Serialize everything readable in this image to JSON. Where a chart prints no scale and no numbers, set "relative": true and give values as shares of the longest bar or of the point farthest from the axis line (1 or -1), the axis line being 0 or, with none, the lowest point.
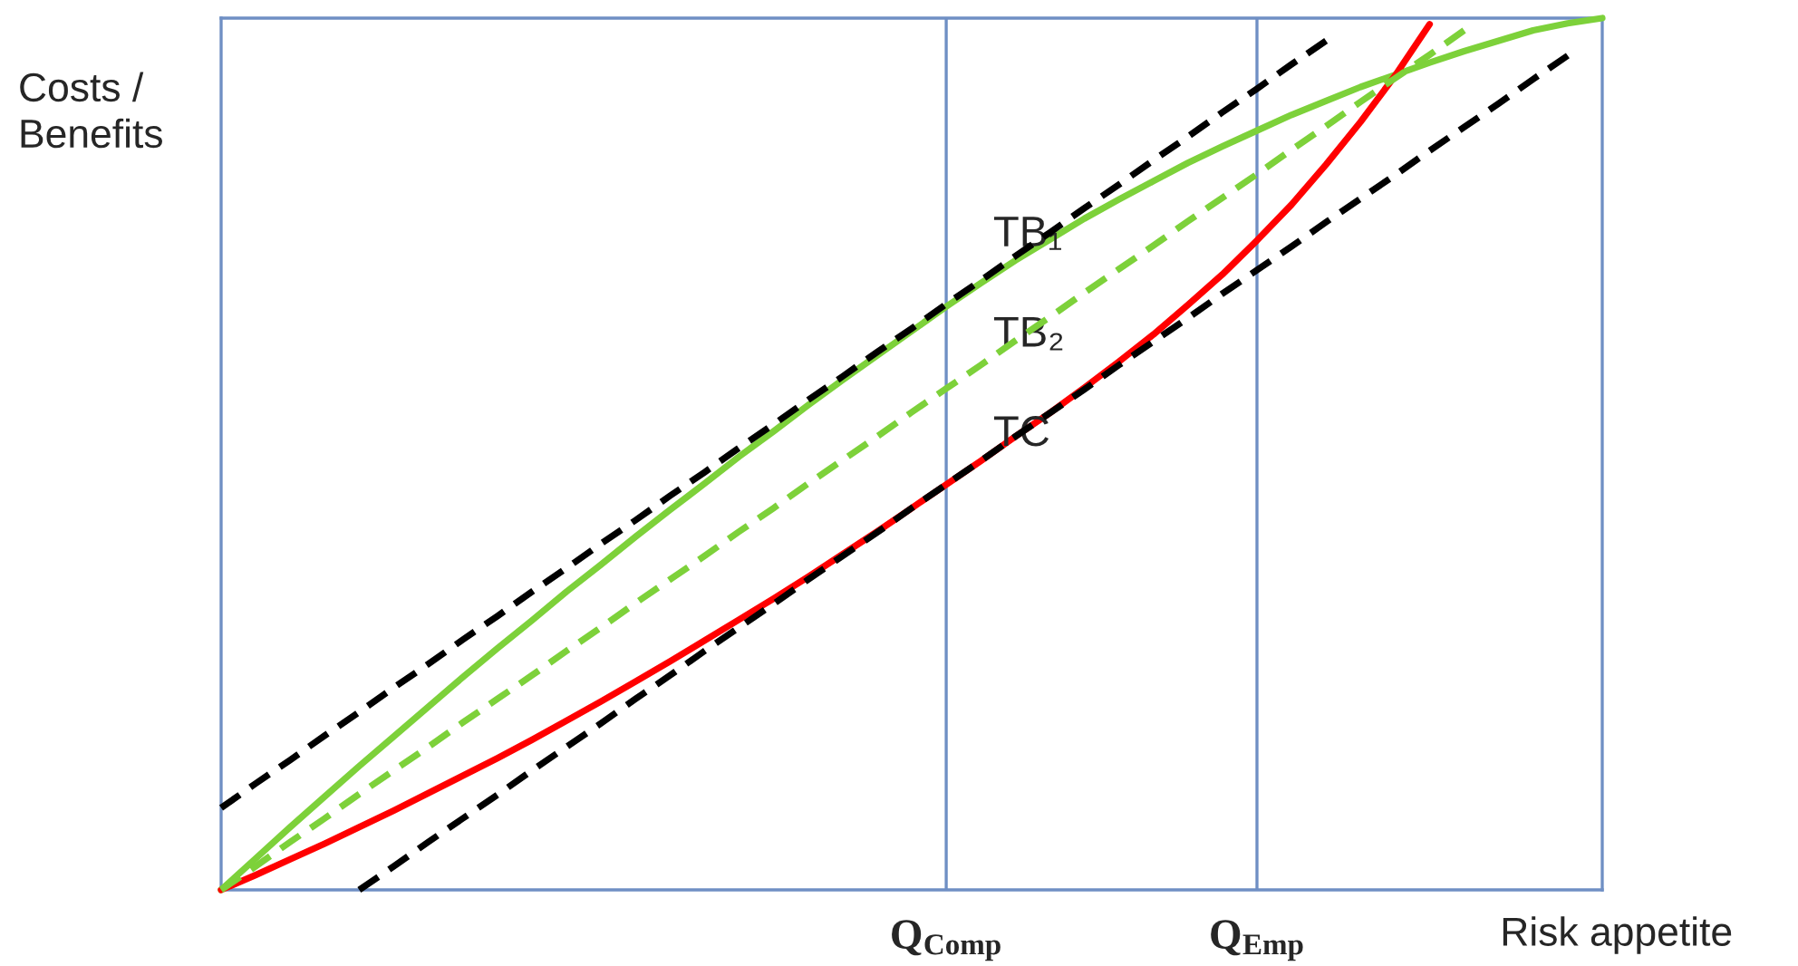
{
  "chart_data": {
    "type": "line",
    "relative": true,
    "xlabel": "Risk appetite",
    "ylabel": "Costs /\nBenefits",
    "categories": [
      null,
      null,
      null,
      null,
      null,
      null,
      null,
      null,
      null,
      null,
      null,
      null,
      null,
      null,
      null,
      null,
      null,
      null,
      null,
      null,
      null,
      "Q$_{Comp}$",
      null,
      null,
      null,
      null,
      null,
      null,
      null,
      null,
      "Q$_{Emp}$",
      null,
      null,
      null,
      null,
      null,
      null,
      null,
      null,
      null,
      null
    ],
    "grid": "x",
    "legend": false,
    "marker": "none",
    "series": [
      {
        "color": "#000000",
        "line_style": "dashed",
        "values": [
          0.094,
          0.122,
          0.149,
          0.177,
          0.204,
          0.232,
          0.259,
          0.287,
          0.314,
          0.342,
          0.369,
          0.397,
          0.424,
          0.452,
          0.479,
          0.507,
          0.534,
          0.562,
          0.589,
          0.617,
          0.644,
          0.672,
          0.699,
          0.727,
          0.754,
          0.782,
          0.809,
          0.837,
          0.864,
          0.892,
          0.919,
          0.947,
          0.974,
          null,
          null,
          null,
          null,
          null,
          null,
          null,
          null
        ]
      },
      {
        "color": "#000000",
        "line_style": "dashed",
        "values": [
          null,
          null,
          null,
          null,
          0,
          0.027,
          0.055,
          0.082,
          0.109,
          0.137,
          0.164,
          0.191,
          0.219,
          0.246,
          0.274,
          0.301,
          0.328,
          0.356,
          0.383,
          0.41,
          0.438,
          0.465,
          0.492,
          0.52,
          0.547,
          0.574,
          0.602,
          0.629,
          0.656,
          0.684,
          0.711,
          0.738,
          0.766,
          0.793,
          0.82,
          0.848,
          0.875,
          0.902,
          0.93,
          0.957,
          null
        ]
      },
      {
        "color": "#7dd13a",
        "line_style": "dashed",
        "values": [
          0,
          0.027,
          0.055,
          0.082,
          0.11,
          0.137,
          0.164,
          0.192,
          0.219,
          0.246,
          0.274,
          0.301,
          0.329,
          0.356,
          0.383,
          0.411,
          0.438,
          0.466,
          0.493,
          0.52,
          0.548,
          0.575,
          0.602,
          0.63,
          0.657,
          0.685,
          0.712,
          0.739,
          0.767,
          0.794,
          0.821,
          0.849,
          0.876,
          0.904,
          0.931,
          0.958,
          0.986,
          null,
          null,
          null,
          null
        ]
      },
      {
        "color": "#7dd13a",
        "line_style": "solid",
        "values": [
          0,
          0.036,
          0.072,
          0.107,
          0.142,
          0.176,
          0.21,
          0.244,
          0.277,
          0.309,
          0.342,
          0.373,
          0.405,
          0.436,
          0.466,
          0.497,
          0.526,
          0.556,
          0.585,
          0.613,
          0.641,
          0.669,
          0.696,
          0.722,
          0.746,
          0.77,
          0.792,
          0.813,
          0.834,
          0.853,
          0.871,
          0.889,
          0.905,
          0.921,
          0.935,
          0.949,
          0.962,
          0.974,
          0.986,
          0.994,
          1
        ]
      },
      {
        "color": "#ff0000",
        "line_style": "solid",
        "values": [
          0,
          0.017,
          0.035,
          0.053,
          0.072,
          0.091,
          0.111,
          0.131,
          0.151,
          0.172,
          0.194,
          0.216,
          0.239,
          0.262,
          0.286,
          0.31,
          0.334,
          0.359,
          0.385,
          0.411,
          0.438,
          0.465,
          0.492,
          0.52,
          0.547,
          0.576,
          0.606,
          0.637,
          0.671,
          0.706,
          0.745,
          0.786,
          0.832,
          0.881,
          0.934,
          0.993,
          null,
          null,
          null,
          null,
          null
        ]
      }
    ],
    "annotations": [
      "TB₁",
      "TB₂",
      "TC"
    ]
  }
}
